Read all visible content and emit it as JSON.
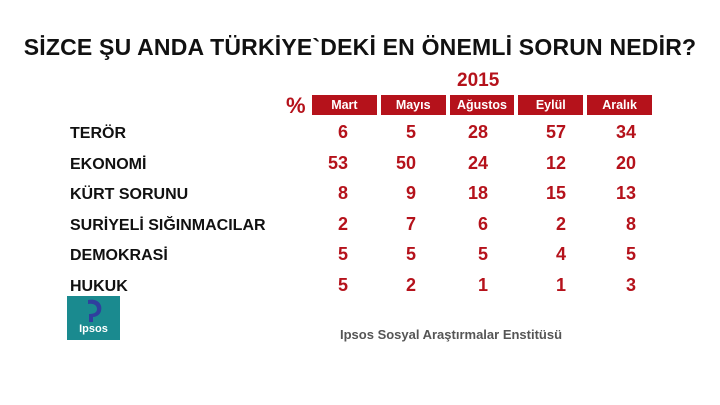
{
  "title": "SİZCE ŞU ANDA TÜRKİYE`DEKİ EN ÖNEMLİ SORUN NEDİR?",
  "chart_data": {
    "type": "table",
    "year": "2015",
    "unit": "%",
    "columns": [
      "Mart",
      "Mayıs",
      "Ağustos",
      "Eylül",
      "Aralık"
    ],
    "rows": [
      {
        "label": "TERÖR",
        "values": [
          6,
          5,
          28,
          57,
          34
        ]
      },
      {
        "label": "EKONOMİ",
        "values": [
          53,
          50,
          24,
          12,
          20
        ]
      },
      {
        "label": "KÜRT SORUNU",
        "values": [
          8,
          9,
          18,
          15,
          13
        ]
      },
      {
        "label": "SURİYELİ SIĞINMACILAR",
        "values": [
          2,
          7,
          6,
          2,
          8
        ]
      },
      {
        "label": "DEMOKRASİ",
        "values": [
          5,
          5,
          5,
          4,
          5
        ]
      },
      {
        "label": "HUKUK",
        "values": [
          5,
          2,
          1,
          1,
          3
        ]
      }
    ]
  },
  "logo": {
    "text": "Ipsos",
    "color": "#1a8a8f",
    "accent": "#2f3f9e"
  },
  "source": "Ipsos Sosyal Araştırmalar Enstitüsü",
  "colors": {
    "accent": "#b5121b",
    "text": "#111111"
  }
}
